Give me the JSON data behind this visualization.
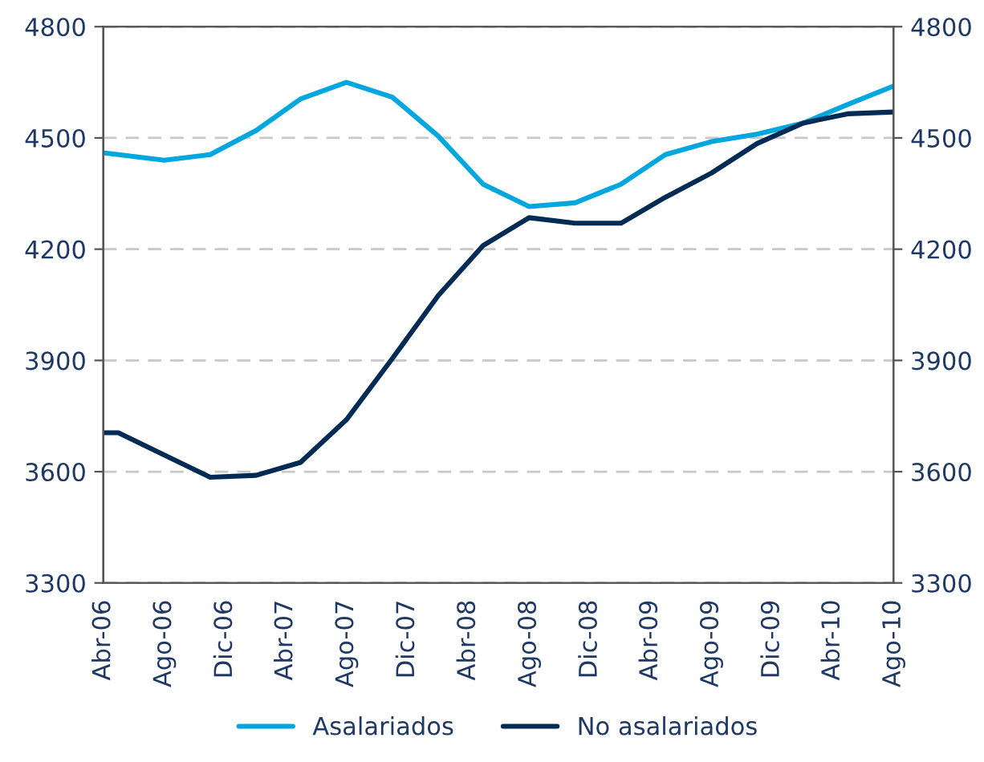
{
  "chart_data": {
    "type": "line",
    "x": [
      "2006-04",
      "2006-05",
      "2006-08",
      "2006-11",
      "2007-02",
      "2007-05",
      "2007-08",
      "2007-11",
      "2008-02",
      "2008-05",
      "2008-08",
      "2008-11",
      "2009-02",
      "2009-05",
      "2009-08",
      "2009-11",
      "2010-02",
      "2010-05",
      "2010-08"
    ],
    "series": [
      {
        "name": "Asalariados",
        "color": "#00a6de",
        "values": [
          4460,
          4455,
          4440,
          4455,
          4520,
          4605,
          4650,
          4610,
          4505,
          4375,
          4315,
          4325,
          4375,
          4455,
          4490,
          4510,
          4540,
          4590,
          4640
        ]
      },
      {
        "name": "No asalariados",
        "color": "#002b55",
        "values": [
          3705,
          3705,
          3645,
          3585,
          3590,
          3625,
          3740,
          3905,
          4075,
          4210,
          4285,
          4270,
          4270,
          4340,
          4405,
          4485,
          4540,
          4565,
          4570
        ]
      }
    ],
    "xlim": [
      "2006-04",
      "2010-08"
    ],
    "xticks": [
      {
        "value": "2006-04",
        "label": "Abr-06"
      },
      {
        "value": "2006-08",
        "label": "Ago-06"
      },
      {
        "value": "2006-12",
        "label": "Dic-06"
      },
      {
        "value": "2007-04",
        "label": "Abr-07"
      },
      {
        "value": "2007-08",
        "label": "Ago-07"
      },
      {
        "value": "2007-12",
        "label": "Dic-07"
      },
      {
        "value": "2008-04",
        "label": "Abr-08"
      },
      {
        "value": "2008-08",
        "label": "Ago-08"
      },
      {
        "value": "2008-12",
        "label": "Dic-08"
      },
      {
        "value": "2009-04",
        "label": "Abr-09"
      },
      {
        "value": "2009-08",
        "label": "Ago-09"
      },
      {
        "value": "2009-12",
        "label": "Dic-09"
      },
      {
        "value": "2010-04",
        "label": "Abr-10"
      },
      {
        "value": "2010-08",
        "label": "Ago-10"
      }
    ],
    "ylim": [
      3300,
      4800
    ],
    "yticks": [
      3300,
      3600,
      3900,
      4200,
      4500,
      4800
    ],
    "y2lim": [
      3300,
      4800
    ],
    "y2ticks": [
      3300,
      3600,
      3900,
      4200,
      4500,
      4800
    ],
    "grid": "y",
    "legend": "bottom",
    "marker": "none",
    "line_style": "solid"
  }
}
